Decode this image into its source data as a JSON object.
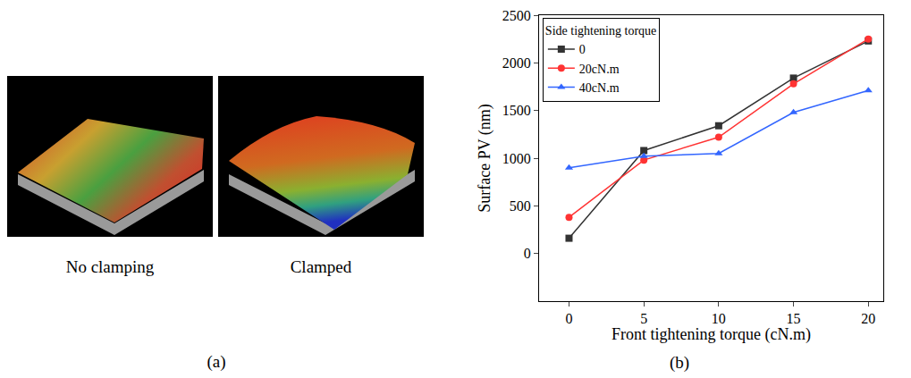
{
  "panel_a": {
    "label": "(a)",
    "images": [
      {
        "caption": "No clamping"
      },
      {
        "caption": "Clamped"
      }
    ]
  },
  "panel_b": {
    "label": "(b)"
  },
  "chart_data": {
    "type": "line",
    "x_label": "Front tightening torque (cN.m)",
    "y_label": "Surface PV (nm)",
    "legend_title": "Side tightening torque",
    "x": [
      0,
      5,
      10,
      15,
      20
    ],
    "series": [
      {
        "name": "0",
        "color": "#333333",
        "marker": "square",
        "values": [
          160,
          1080,
          1340,
          1840,
          2230
        ]
      },
      {
        "name": "20cN.m",
        "color": "#ff3333",
        "marker": "circle",
        "values": [
          380,
          980,
          1220,
          1780,
          2250
        ]
      },
      {
        "name": "40cN.m",
        "color": "#3366ff",
        "marker": "triangle-up",
        "values": [
          900,
          1020,
          1050,
          1480,
          1710
        ]
      }
    ],
    "xlim": [
      -2,
      21
    ],
    "xticks": [
      0,
      5,
      10,
      15,
      20
    ],
    "ylim": [
      -500,
      2500
    ],
    "yticks": [
      0,
      500,
      1000,
      1500,
      2000,
      2500
    ],
    "grid": false,
    "legend": "upper left"
  }
}
